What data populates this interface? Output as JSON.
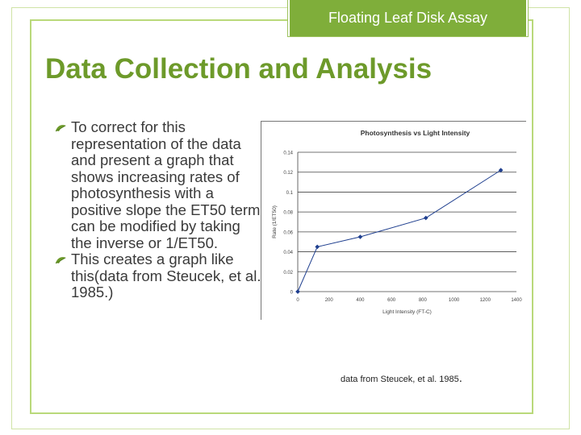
{
  "header": {
    "tab_label": "Floating Leaf Disk Assay"
  },
  "title": "Data Collection and Analysis",
  "bullets": [
    {
      "text": "To correct for this representation of the data and present a graph that shows increasing rates of photosynthesis with a positive slope the ET50 term can be modified by taking the inverse or 1/ET50."
    },
    {
      "text": "This creates a graph like this(data from Steucek, et al. 1985.)"
    }
  ],
  "caption": {
    "text": "data from Steucek, et al. 1985",
    "period": "."
  },
  "icons": {
    "bullet": "leaf-arrow-icon"
  },
  "colors": {
    "accent": "#6d9a2a",
    "header_bg": "#7fae3a",
    "series": "#1f3f8f"
  },
  "chart_data": {
    "type": "line",
    "title": "Photosynthesis vs Light Intensity",
    "xlabel": "Light Intensity (FT-C)",
    "ylabel": "Rate (1/ET50)",
    "xlim": [
      0,
      1400
    ],
    "ylim": [
      0,
      0.14
    ],
    "xticks": [
      "0",
      "200",
      "400",
      "600",
      "800",
      "1000",
      "1200",
      "1400"
    ],
    "yticks": [
      "0",
      "0.02",
      "0.04",
      "0.06",
      "0.08",
      "0.1",
      "0.12",
      "0.14"
    ],
    "grid": "horizontal",
    "series": [
      {
        "x": [
          0,
          125,
          400,
          820,
          1300
        ],
        "y": [
          0,
          0.045,
          0.055,
          0.074,
          0.122
        ]
      }
    ]
  }
}
